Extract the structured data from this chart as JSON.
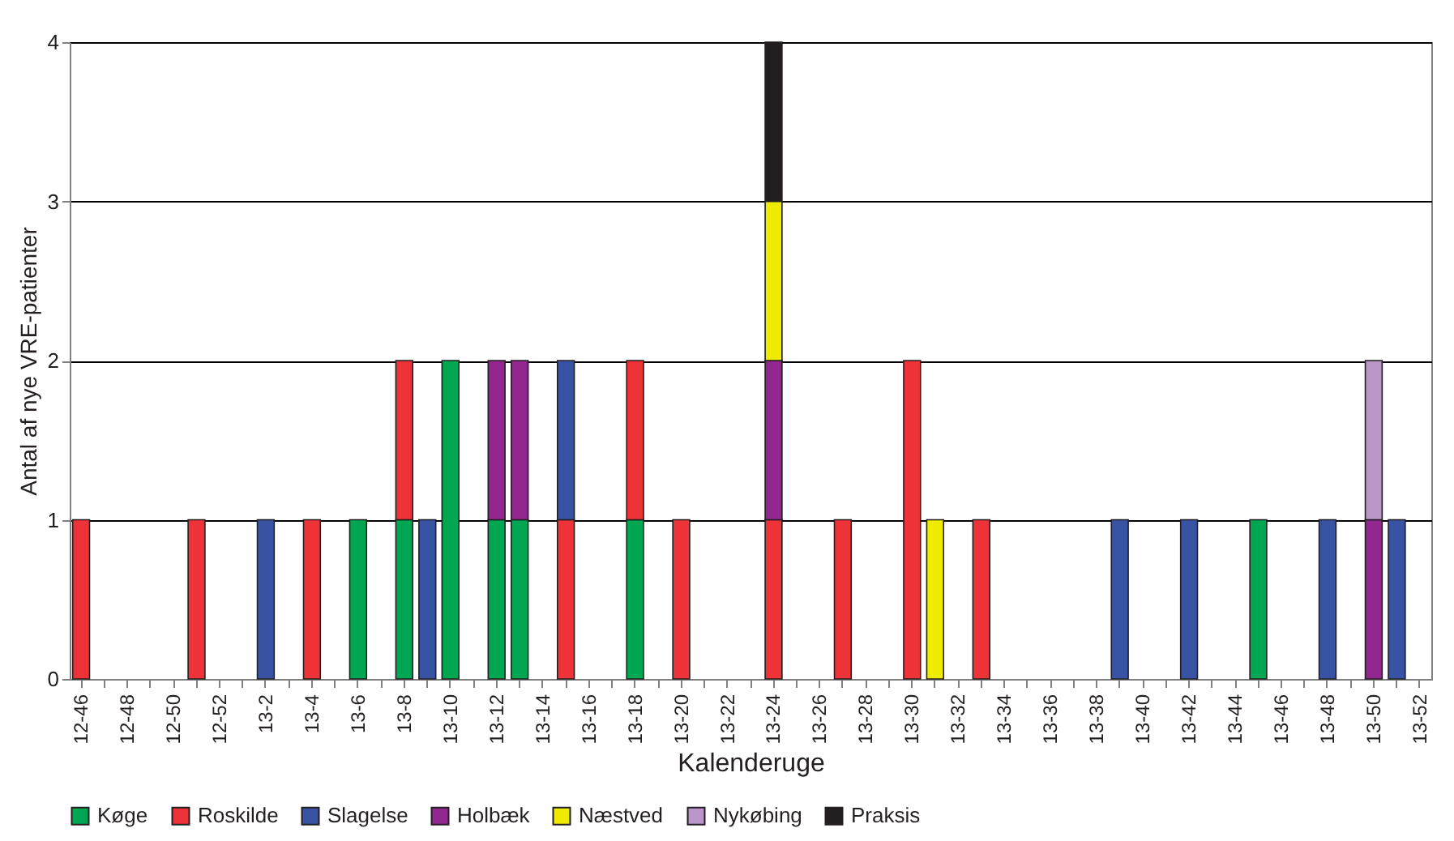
{
  "chart_data": {
    "type": "bar",
    "stacked": true,
    "xlabel": "Kalenderuge",
    "ylabel": "Antal af nye VRE-patienter",
    "categories": [
      "12-46",
      null,
      "12-48",
      null,
      "12-50",
      null,
      "12-52",
      null,
      "13-2",
      null,
      "13-4",
      null,
      "13-6",
      null,
      "13-8",
      null,
      "13-10",
      null,
      "13-12",
      null,
      "13-14",
      null,
      "13-16",
      null,
      "13-18",
      null,
      "13-20",
      null,
      "13-22",
      null,
      "13-24",
      null,
      "13-26",
      null,
      "13-28",
      null,
      "13-30",
      null,
      "13-32",
      null,
      "13-34",
      null,
      "13-36",
      null,
      "13-38",
      null,
      "13-40",
      null,
      "13-42",
      null,
      "13-44",
      null,
      "13-46",
      null,
      "13-48",
      null,
      "13-50",
      null,
      "13-52"
    ],
    "series": [
      {
        "name": "Køge",
        "color": "#00a651",
        "values": [
          0,
          0,
          0,
          0,
          0,
          0,
          0,
          0,
          0,
          0,
          0,
          0,
          1,
          0,
          1,
          0,
          2,
          0,
          1,
          1,
          0,
          0,
          0,
          0,
          1,
          0,
          0,
          0,
          0,
          0,
          0,
          0,
          0,
          0,
          0,
          0,
          0,
          0,
          0,
          0,
          0,
          0,
          0,
          0,
          0,
          0,
          0,
          0,
          0,
          0,
          0,
          1,
          0,
          0,
          0,
          0,
          0,
          0,
          0
        ]
      },
      {
        "name": "Roskilde",
        "color": "#ee3338",
        "values": [
          1,
          0,
          0,
          0,
          0,
          1,
          0,
          0,
          0,
          0,
          1,
          0,
          0,
          0,
          1,
          0,
          0,
          0,
          0,
          0,
          0,
          1,
          0,
          0,
          1,
          0,
          1,
          0,
          0,
          0,
          1,
          0,
          0,
          1,
          0,
          0,
          2,
          0,
          0,
          1,
          0,
          0,
          0,
          0,
          0,
          0,
          0,
          0,
          0,
          0,
          0,
          0,
          0,
          0,
          0,
          0,
          0,
          0,
          0
        ]
      },
      {
        "name": "Slagelse",
        "color": "#3953a4",
        "values": [
          0,
          0,
          0,
          0,
          0,
          0,
          0,
          0,
          1,
          0,
          0,
          0,
          0,
          0,
          0,
          1,
          0,
          0,
          0,
          0,
          0,
          1,
          0,
          0,
          0,
          0,
          0,
          0,
          0,
          0,
          0,
          0,
          0,
          0,
          0,
          0,
          0,
          0,
          0,
          0,
          0,
          0,
          0,
          0,
          0,
          1,
          0,
          0,
          1,
          0,
          0,
          0,
          0,
          0,
          1,
          0,
          0,
          1,
          0
        ]
      },
      {
        "name": "Holbæk",
        "color": "#92278f",
        "values": [
          0,
          0,
          0,
          0,
          0,
          0,
          0,
          0,
          0,
          0,
          0,
          0,
          0,
          0,
          0,
          0,
          0,
          0,
          1,
          1,
          0,
          0,
          0,
          0,
          0,
          0,
          0,
          0,
          0,
          0,
          1,
          0,
          0,
          0,
          0,
          0,
          0,
          0,
          0,
          0,
          0,
          0,
          0,
          0,
          0,
          0,
          0,
          0,
          0,
          0,
          0,
          0,
          0,
          0,
          0,
          0,
          1,
          0,
          0
        ]
      },
      {
        "name": "Næstved",
        "color": "#eeea00",
        "values": [
          0,
          0,
          0,
          0,
          0,
          0,
          0,
          0,
          0,
          0,
          0,
          0,
          0,
          0,
          0,
          0,
          0,
          0,
          0,
          0,
          0,
          0,
          0,
          0,
          0,
          0,
          0,
          0,
          0,
          0,
          1,
          0,
          0,
          0,
          0,
          0,
          0,
          1,
          0,
          0,
          0,
          0,
          0,
          0,
          0,
          0,
          0,
          0,
          0,
          0,
          0,
          0,
          0,
          0,
          0,
          0,
          0,
          0,
          0
        ]
      },
      {
        "name": "Nykøbing",
        "color": "#b995c8",
        "values": [
          0,
          0,
          0,
          0,
          0,
          0,
          0,
          0,
          0,
          0,
          0,
          0,
          0,
          0,
          0,
          0,
          0,
          0,
          0,
          0,
          0,
          0,
          0,
          0,
          0,
          0,
          0,
          0,
          0,
          0,
          0,
          0,
          0,
          0,
          0,
          0,
          0,
          0,
          0,
          0,
          0,
          0,
          0,
          0,
          0,
          0,
          0,
          0,
          0,
          0,
          0,
          0,
          0,
          0,
          0,
          0,
          1,
          0,
          0
        ]
      },
      {
        "name": "Praksis",
        "color": "#231f20",
        "values": [
          0,
          0,
          0,
          0,
          0,
          0,
          0,
          0,
          0,
          0,
          0,
          0,
          0,
          0,
          0,
          0,
          0,
          0,
          0,
          0,
          0,
          0,
          0,
          0,
          0,
          0,
          0,
          0,
          0,
          0,
          1,
          0,
          0,
          0,
          0,
          0,
          0,
          0,
          0,
          0,
          0,
          0,
          0,
          0,
          0,
          0,
          0,
          0,
          0,
          0,
          0,
          0,
          0,
          0,
          0,
          0,
          0,
          0,
          0
        ]
      }
    ],
    "ylim": [
      0,
      4
    ],
    "yticks": [
      0,
      1,
      2,
      3,
      4
    ],
    "grid": "y",
    "legend": "bottom"
  }
}
